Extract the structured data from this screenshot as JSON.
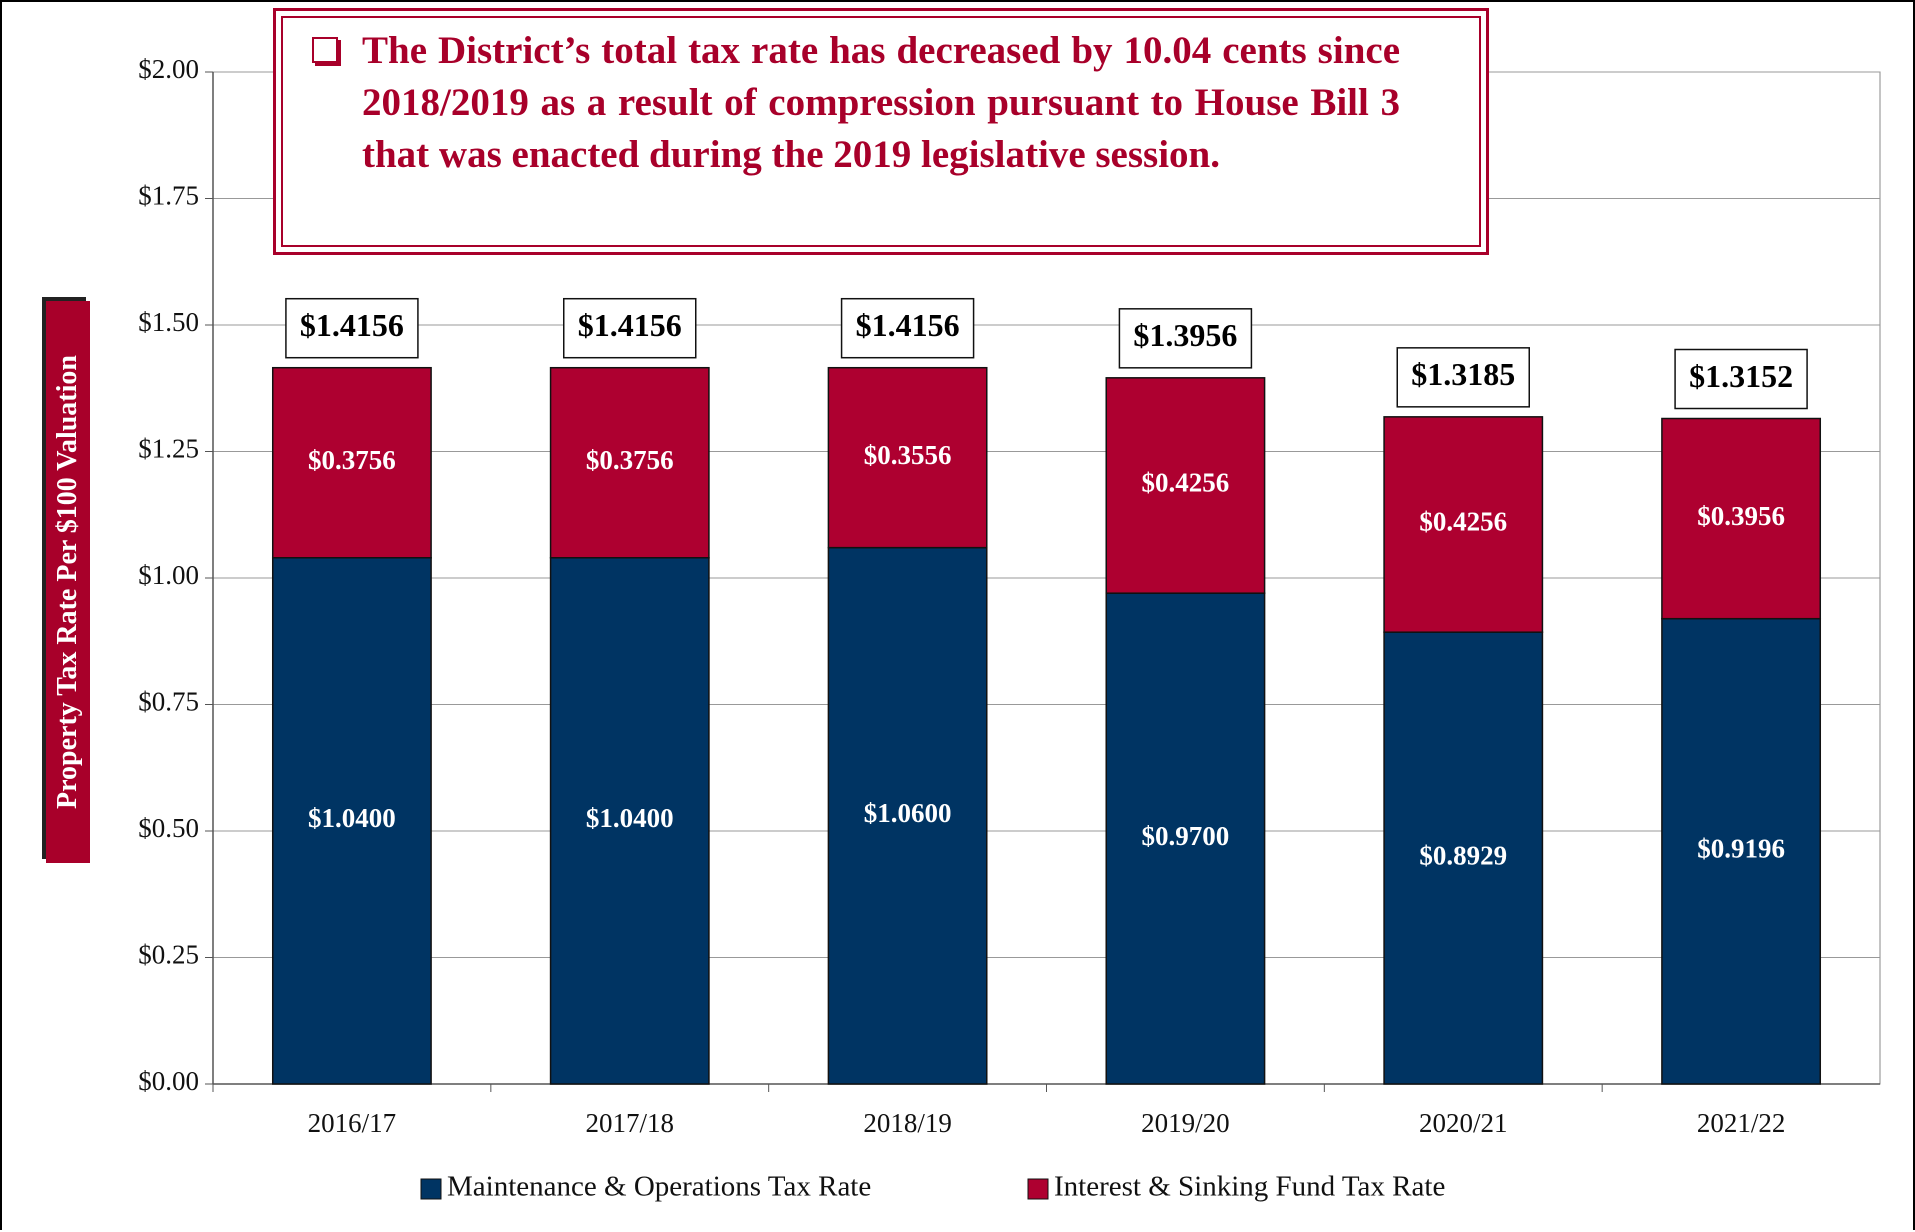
{
  "chart_data": {
    "type": "stacked_bar",
    "annotation": "The District’s total tax rate has decreased by 10.04 cents since 2018/2019 as a result of compression pursuant to House Bill 3 that was enacted during the 2019 legislative session.",
    "y_label": "Property Tax Rate Per $100 Valuation",
    "categories": [
      "2016/17",
      "2017/18",
      "2018/19",
      "2019/20",
      "2020/21",
      "2021/22"
    ],
    "series": [
      {
        "name": "Maintenance & Operations Tax Rate",
        "color": "#003463",
        "values": [
          1.04,
          1.04,
          1.06,
          0.97,
          0.8929,
          0.9196
        ],
        "value_labels": [
          "$1.0400",
          "$1.0400",
          "$1.0600",
          "$0.9700",
          "$0.8929",
          "$0.9196"
        ]
      },
      {
        "name": "Interest & Sinking Fund Tax Rate",
        "color": "#ae0030",
        "values": [
          0.3756,
          0.3756,
          0.3556,
          0.4256,
          0.4256,
          0.3956
        ],
        "value_labels": [
          "$0.3756",
          "$0.3756",
          "$0.3556",
          "$0.4256",
          "$0.4256",
          "$0.3956"
        ]
      }
    ],
    "totals": [
      1.4156,
      1.4156,
      1.4156,
      1.3956,
      1.3185,
      1.3152
    ],
    "total_labels": [
      "$1.4156",
      "$1.4156",
      "$1.4156",
      "$1.3956",
      "$1.3185",
      "$1.3152"
    ],
    "ylim": [
      0,
      2
    ],
    "yticks": [
      {
        "value": 0,
        "label": "$0.00"
      },
      {
        "value": 0.25,
        "label": "$0.25"
      },
      {
        "value": 0.5,
        "label": "$0.50"
      },
      {
        "value": 0.75,
        "label": "$0.75"
      },
      {
        "value": 1,
        "label": "$1.00"
      },
      {
        "value": 1.25,
        "label": "$1.25"
      },
      {
        "value": 1.5,
        "label": "$1.50"
      },
      {
        "value": 1.75,
        "label": "$1.75"
      },
      {
        "value": 2,
        "label": "$2.00"
      }
    ],
    "grid": true,
    "legend": "bottom"
  }
}
